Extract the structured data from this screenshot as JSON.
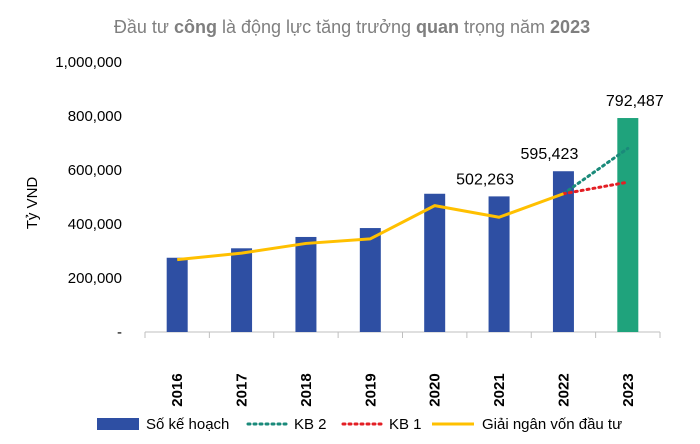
{
  "chart_data": {
    "type": "bar",
    "title_parts": [
      {
        "text": "Đầu tư ",
        "bold": false
      },
      {
        "text": "công",
        "bold": true
      },
      {
        "text": " là ",
        "bold": false
      },
      {
        "text": "động lực",
        "bold": false
      },
      {
        "text": " tăng trưởng ",
        "bold": false
      },
      {
        "text": "quan",
        "bold": true
      },
      {
        "text": " trọng năm ",
        "bold": false
      },
      {
        "text": "2023",
        "bold": true
      }
    ],
    "ylabel": "Tỷ VND",
    "ylim": [
      0,
      1000000
    ],
    "yticks": [
      {
        "value": 0,
        "label": "-"
      },
      {
        "value": 200000,
        "label": "200,000"
      },
      {
        "value": 400000,
        "label": "400,000"
      },
      {
        "value": 600000,
        "label": "600,000"
      },
      {
        "value": 800000,
        "label": "800,000"
      },
      {
        "value": 1000000,
        "label": "1,000,000"
      }
    ],
    "categories": [
      "2016",
      "2017",
      "2018",
      "2019",
      "2020",
      "2021",
      "2022",
      "2023"
    ],
    "series": [
      {
        "name": "Số kế hoạch",
        "kind": "bar",
        "color": "#2e4fa3",
        "values": [
          275000,
          310000,
          352000,
          385000,
          512000,
          502263,
          595423,
          null
        ]
      },
      {
        "name": "KB 2",
        "kind": "dotted-line",
        "color": "#1a8a7a",
        "points": [
          {
            "x": "2022",
            "y": 512000
          },
          {
            "x": "2023",
            "y": 680000
          }
        ]
      },
      {
        "name": "KB 1",
        "kind": "dotted-line",
        "color": "#e31e24",
        "points": [
          {
            "x": "2022",
            "y": 512000
          },
          {
            "x": "2023",
            "y": 555000
          }
        ]
      },
      {
        "name": "Giải ngân vốn đầu tư",
        "kind": "line",
        "color": "#ffc000",
        "values": [
          268000,
          292000,
          328000,
          345000,
          468000,
          425000,
          512000,
          null
        ]
      }
    ],
    "highlight_bar": {
      "category": "2023",
      "value": 792487,
      "color": "#1fa37c"
    },
    "data_labels": [
      {
        "category": "2021",
        "value": 502263,
        "text": "502,263"
      },
      {
        "category": "2022",
        "value": 595423,
        "text": "595,423"
      },
      {
        "category": "2023",
        "value": 792487,
        "text": "792,487"
      }
    ],
    "legend_order": [
      "Số kế hoạch",
      "KB 2",
      "KB 1",
      "Giải ngân vốn đầu tư"
    ],
    "legend_position": "bottom",
    "grid": false
  }
}
